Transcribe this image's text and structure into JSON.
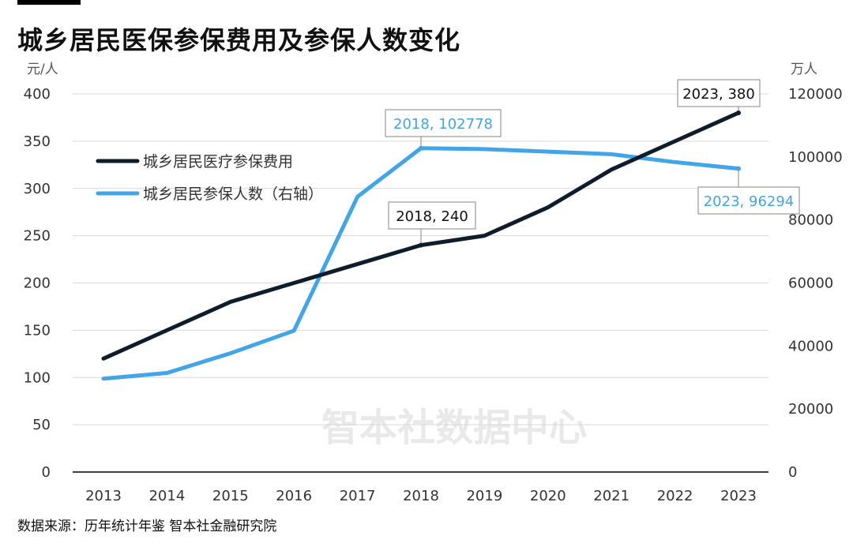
{
  "title": "城乡居民医保参保费用及参保人数变化",
  "source": "数据来源：历年统计年鉴 智本社金融研究院",
  "watermark": "智本社数据中心",
  "colors": {
    "series1": "#0f1c2b",
    "series2": "#41a5e8",
    "grid": "#d9d9d9",
    "axis": "#000000"
  },
  "chart_data": {
    "type": "line",
    "categories": [
      "2013",
      "2014",
      "2015",
      "2016",
      "2017",
      "2018",
      "2019",
      "2020",
      "2021",
      "2022",
      "2023"
    ],
    "y_left": {
      "unit": "元/人",
      "lim": [
        0,
        400
      ],
      "ticks": [
        "0",
        "50",
        "100",
        "150",
        "200",
        "250",
        "300",
        "350",
        "400"
      ]
    },
    "y_right": {
      "unit": "万人",
      "lim": [
        0,
        120000
      ],
      "ticks": [
        "0",
        "20000",
        "40000",
        "60000",
        "80000",
        "100000",
        "120000"
      ]
    },
    "grid": true,
    "legend_position": "top-left",
    "series": [
      {
        "name": "城乡居民医疗参保费用",
        "axis": "left",
        "color": "#0f1c2b",
        "values": [
          120,
          150,
          180,
          200,
          220,
          240,
          250,
          280,
          320,
          350,
          380
        ]
      },
      {
        "name": "城乡居民参保人数（右轴）",
        "axis": "right",
        "color": "#41a5e8",
        "values": [
          29629,
          31451,
          37689,
          44860,
          87359,
          102778,
          102483,
          101676,
          100866,
          98349,
          96294
        ]
      }
    ],
    "annotations": [
      {
        "text": "2018, 102778",
        "series": 1,
        "index": 5,
        "color": "#41a5e8"
      },
      {
        "text": "2018, 240",
        "series": 0,
        "index": 5,
        "color": "#111111"
      },
      {
        "text": "2023, 380",
        "series": 0,
        "index": 10,
        "color": "#111111"
      },
      {
        "text": "2023, 96294",
        "series": 1,
        "index": 10,
        "color": "#41a5e8"
      }
    ]
  }
}
